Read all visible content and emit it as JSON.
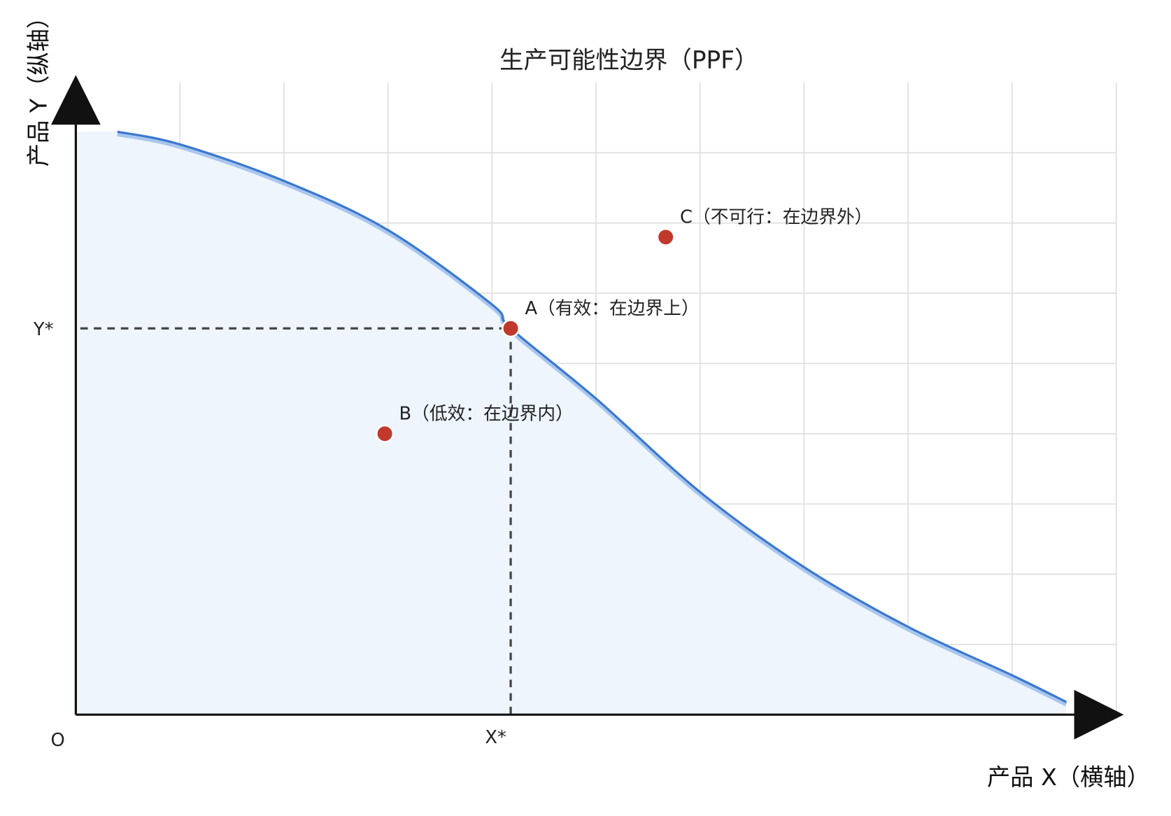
{
  "chart_data": {
    "type": "line",
    "title": "生产可能性边界（PPF）",
    "xlabel": "产品 X（横轴）",
    "ylabel": "产品 Y（纵轴）",
    "origin_label": "O",
    "xlim": [
      0,
      10
    ],
    "ylim": [
      0,
      9
    ],
    "grid": true,
    "curve": {
      "x": [
        0.4,
        1.0,
        2.0,
        3.0,
        4.0,
        4.18,
        5.0,
        6.0,
        7.0,
        8.0,
        9.0,
        9.52
      ],
      "y": [
        8.3,
        8.12,
        7.6,
        6.9,
        5.84,
        5.5,
        4.5,
        3.17,
        2.1,
        1.25,
        0.56,
        0.18
      ],
      "color": "#3a78d0",
      "fill_color": "#eef5fd",
      "fill_start_y": 8.3
    },
    "points": [
      {
        "label": "A（有效：在边界上）",
        "x": 4.18,
        "y": 5.5
      },
      {
        "label": "B（低效：在边界内）",
        "x": 2.97,
        "y": 4.0
      },
      {
        "label": "C（不可行：在边界外）",
        "x": 5.67,
        "y": 6.8
      }
    ],
    "point_color": "#c0392b",
    "reference": {
      "x_label": "X*",
      "y_label": "Y*",
      "x": 4.18,
      "y": 5.5,
      "color": "#444444"
    }
  }
}
